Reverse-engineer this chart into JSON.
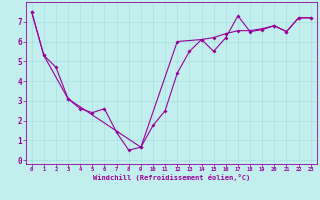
{
  "xlabel": "Windchill (Refroidissement éolien,°C)",
  "bg_color": "#c2eeee",
  "line_color": "#990099",
  "xlim": [
    -0.5,
    23.5
  ],
  "ylim": [
    -0.2,
    8.0
  ],
  "xticks": [
    0,
    1,
    2,
    3,
    4,
    5,
    6,
    7,
    8,
    9,
    10,
    11,
    12,
    13,
    14,
    15,
    16,
    17,
    18,
    19,
    20,
    21,
    22,
    23
  ],
  "yticks": [
    0,
    1,
    2,
    3,
    4,
    5,
    6,
    7
  ],
  "series1": [
    [
      0,
      7.5
    ],
    [
      1,
      5.3
    ],
    [
      2,
      4.7
    ],
    [
      3,
      3.1
    ],
    [
      4,
      2.6
    ],
    [
      5,
      2.4
    ],
    [
      6,
      2.6
    ],
    [
      7,
      1.4
    ],
    [
      8,
      0.5
    ],
    [
      9,
      0.65
    ],
    [
      10,
      1.75
    ],
    [
      11,
      2.5
    ],
    [
      12,
      4.4
    ],
    [
      13,
      5.5
    ],
    [
      14,
      6.1
    ],
    [
      15,
      5.5
    ],
    [
      16,
      6.2
    ],
    [
      17,
      7.3
    ],
    [
      18,
      6.5
    ],
    [
      19,
      6.6
    ],
    [
      20,
      6.8
    ],
    [
      21,
      6.5
    ],
    [
      22,
      7.2
    ],
    [
      23,
      7.2
    ]
  ],
  "series2": [
    [
      0,
      7.5
    ],
    [
      1,
      5.3
    ],
    [
      3,
      3.1
    ],
    [
      9,
      0.65
    ],
    [
      12,
      6.0
    ],
    [
      14,
      6.1
    ],
    [
      15,
      6.2
    ],
    [
      16,
      6.4
    ],
    [
      17,
      6.55
    ],
    [
      18,
      6.55
    ],
    [
      19,
      6.65
    ],
    [
      20,
      6.8
    ],
    [
      21,
      6.5
    ],
    [
      22,
      7.2
    ],
    [
      23,
      7.2
    ]
  ]
}
